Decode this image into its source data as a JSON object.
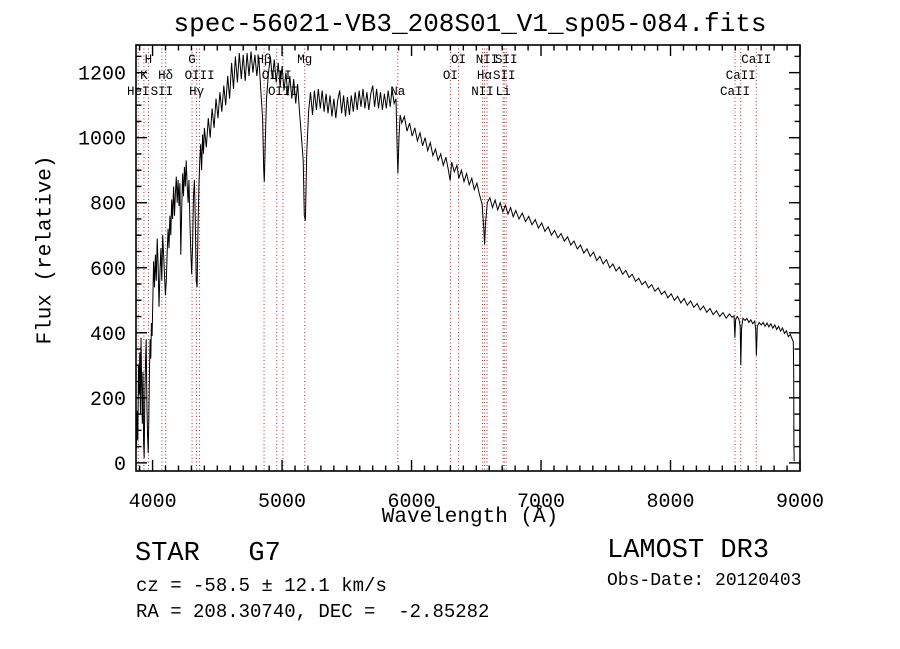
{
  "annotations": {
    "star_class": "STAR   G7",
    "survey": "LAMOST DR3",
    "cz": "cz = -58.5 ± 12.1 km/s",
    "radec": "RA = 208.30740, DEC =  -2.85282",
    "obs_date": "Obs-Date: 20120403"
  },
  "chart_data": {
    "type": "line",
    "title": "spec-56021-VB3_208S01_V1_sp05-084.fits",
    "xlabel": "Wavelength (Å)",
    "ylabel": "Flux (relative)",
    "x_range": [
      3872,
      9000
    ],
    "y_range": [
      -25,
      1285
    ],
    "x_ticks": [
      4000,
      5000,
      6000,
      7000,
      8000,
      9000
    ],
    "y_ticks": [
      0,
      200,
      400,
      600,
      800,
      1000,
      1200
    ],
    "x_minor_step": 100,
    "y_minor_step": 50,
    "grid": false,
    "line_color": "#000000",
    "marker_line_color": "#9e3434",
    "spectral_lines": [
      {
        "label": "H",
        "wavelength": 3968,
        "row": 1
      },
      {
        "label": "G",
        "wavelength": 4305,
        "row": 1
      },
      {
        "label": "Hβ",
        "wavelength": 4861,
        "row": 1
      },
      {
        "label": "Mg",
        "wavelength": 5175,
        "row": 1
      },
      {
        "label": "OI",
        "wavelength": 6363,
        "row": 1
      },
      {
        "label": "NII",
        "wavelength": 6583,
        "row": 1
      },
      {
        "label": "SII",
        "wavelength": 6731,
        "row": 1
      },
      {
        "label": "CaII",
        "wavelength": 8662,
        "row": 1
      },
      {
        "label": "K",
        "wavelength": 3933,
        "row": 2
      },
      {
        "label": "Hδ",
        "wavelength": 4101,
        "row": 2
      },
      {
        "label": "OIII",
        "wavelength": 4363,
        "row": 2
      },
      {
        "label": "OIII",
        "wavelength": 4959,
        "row": 2
      },
      {
        "label": "OI",
        "wavelength": 6300,
        "row": 2
      },
      {
        "label": "Hα",
        "wavelength": 6563,
        "row": 2
      },
      {
        "label": "SII",
        "wavelength": 6716,
        "row": 2
      },
      {
        "label": "CaII",
        "wavelength": 8542,
        "row": 2
      },
      {
        "label": "HeI",
        "wavelength": 3889,
        "row": 3
      },
      {
        "label": "SII",
        "wavelength": 4072,
        "row": 3
      },
      {
        "label": "Hγ",
        "wavelength": 4340,
        "row": 3
      },
      {
        "label": "OIII",
        "wavelength": 5007,
        "row": 3
      },
      {
        "label": "Na",
        "wavelength": 5894,
        "row": 3
      },
      {
        "label": "NII",
        "wavelength": 6548,
        "row": 3
      },
      {
        "label": "Li",
        "wavelength": 6707,
        "row": 3
      },
      {
        "label": "CaII",
        "wavelength": 8498,
        "row": 3
      }
    ],
    "spectrum": [
      [
        3876,
        45
      ],
      [
        3881,
        160
      ],
      [
        3886,
        70
      ],
      [
        3891,
        300
      ],
      [
        3896,
        210
      ],
      [
        3901,
        340
      ],
      [
        3906,
        150
      ],
      [
        3911,
        385
      ],
      [
        3916,
        240
      ],
      [
        3921,
        120
      ],
      [
        3926,
        280
      ],
      [
        3931,
        60
      ],
      [
        3935,
        15
      ],
      [
        3940,
        200
      ],
      [
        3946,
        320
      ],
      [
        3951,
        380
      ],
      [
        3956,
        180
      ],
      [
        3961,
        90
      ],
      [
        3966,
        30
      ],
      [
        3971,
        130
      ],
      [
        3976,
        290
      ],
      [
        3981,
        380
      ],
      [
        3986,
        320
      ],
      [
        3991,
        430
      ],
      [
        3996,
        390
      ],
      [
        4001,
        480
      ],
      [
        4008,
        620
      ],
      [
        4015,
        540
      ],
      [
        4022,
        640
      ],
      [
        4029,
        560
      ],
      [
        4036,
        690
      ],
      [
        4043,
        610
      ],
      [
        4050,
        480
      ],
      [
        4057,
        590
      ],
      [
        4064,
        660
      ],
      [
        4071,
        560
      ],
      [
        4078,
        700
      ],
      [
        4085,
        640
      ],
      [
        4092,
        580
      ],
      [
        4099,
        515
      ],
      [
        4106,
        560
      ],
      [
        4113,
        650
      ],
      [
        4120,
        720
      ],
      [
        4127,
        660
      ],
      [
        4134,
        760
      ],
      [
        4141,
        700
      ],
      [
        4148,
        810
      ],
      [
        4155,
        750
      ],
      [
        4162,
        850
      ],
      [
        4169,
        760
      ],
      [
        4176,
        830
      ],
      [
        4183,
        880
      ],
      [
        4190,
        800
      ],
      [
        4197,
        870
      ],
      [
        4204,
        790
      ],
      [
        4211,
        860
      ],
      [
        4218,
        640
      ],
      [
        4225,
        780
      ],
      [
        4232,
        890
      ],
      [
        4239,
        820
      ],
      [
        4246,
        910
      ],
      [
        4253,
        850
      ],
      [
        4260,
        930
      ],
      [
        4267,
        860
      ],
      [
        4274,
        800
      ],
      [
        4281,
        870
      ],
      [
        4288,
        740
      ],
      [
        4295,
        650
      ],
      [
        4302,
        580
      ],
      [
        4309,
        670
      ],
      [
        4316,
        820
      ],
      [
        4323,
        870
      ],
      [
        4330,
        750
      ],
      [
        4337,
        560
      ],
      [
        4344,
        540
      ],
      [
        4351,
        720
      ],
      [
        4358,
        850
      ],
      [
        4365,
        930
      ],
      [
        4372,
        980
      ],
      [
        4379,
        900
      ],
      [
        4386,
        1010
      ],
      [
        4393,
        950
      ],
      [
        4400,
        1030
      ],
      [
        4415,
        970
      ],
      [
        4430,
        1060
      ],
      [
        4445,
        1000
      ],
      [
        4460,
        1090
      ],
      [
        4475,
        1030
      ],
      [
        4490,
        1120
      ],
      [
        4505,
        1060
      ],
      [
        4520,
        1140
      ],
      [
        4535,
        1080
      ],
      [
        4550,
        1160
      ],
      [
        4565,
        1100
      ],
      [
        4580,
        1190
      ],
      [
        4595,
        1120
      ],
      [
        4610,
        1230
      ],
      [
        4625,
        1150
      ],
      [
        4640,
        1250
      ],
      [
        4655,
        1170
      ],
      [
        4670,
        1260
      ],
      [
        4685,
        1180
      ],
      [
        4700,
        1255
      ],
      [
        4715,
        1175
      ],
      [
        4730,
        1260
      ],
      [
        4745,
        1190
      ],
      [
        4760,
        1265
      ],
      [
        4775,
        1200
      ],
      [
        4790,
        1255
      ],
      [
        4805,
        1190
      ],
      [
        4820,
        1250
      ],
      [
        4835,
        1150
      ],
      [
        4850,
        1060
      ],
      [
        4858,
        900
      ],
      [
        4863,
        865
      ],
      [
        4871,
        1000
      ],
      [
        4880,
        1120
      ],
      [
        4895,
        1200
      ],
      [
        4910,
        1250
      ],
      [
        4925,
        1180
      ],
      [
        4940,
        1240
      ],
      [
        4955,
        1170
      ],
      [
        4970,
        1230
      ],
      [
        4985,
        1155
      ],
      [
        5000,
        1220
      ],
      [
        5015,
        1145
      ],
      [
        5030,
        1200
      ],
      [
        5045,
        1130
      ],
      [
        5060,
        1190
      ],
      [
        5075,
        1120
      ],
      [
        5090,
        1180
      ],
      [
        5105,
        1105
      ],
      [
        5120,
        1165
      ],
      [
        5135,
        1080
      ],
      [
        5150,
        1000
      ],
      [
        5163,
        930
      ],
      [
        5172,
        760
      ],
      [
        5180,
        745
      ],
      [
        5190,
        950
      ],
      [
        5205,
        1080
      ],
      [
        5220,
        1140
      ],
      [
        5235,
        1070
      ],
      [
        5250,
        1145
      ],
      [
        5265,
        1085
      ],
      [
        5280,
        1150
      ],
      [
        5295,
        1090
      ],
      [
        5310,
        1145
      ],
      [
        5325,
        1080
      ],
      [
        5340,
        1135
      ],
      [
        5355,
        1075
      ],
      [
        5370,
        1130
      ],
      [
        5385,
        1065
      ],
      [
        5400,
        1120
      ],
      [
        5415,
        1060
      ],
      [
        5430,
        1115
      ],
      [
        5445,
        1145
      ],
      [
        5460,
        1075
      ],
      [
        5475,
        1130
      ],
      [
        5490,
        1065
      ],
      [
        5505,
        1125
      ],
      [
        5520,
        1070
      ],
      [
        5535,
        1130
      ],
      [
        5550,
        1080
      ],
      [
        5565,
        1140
      ],
      [
        5580,
        1085
      ],
      [
        5595,
        1145
      ],
      [
        5610,
        1095
      ],
      [
        5625,
        1150
      ],
      [
        5640,
        1090
      ],
      [
        5655,
        1140
      ],
      [
        5670,
        1085
      ],
      [
        5685,
        1135
      ],
      [
        5700,
        1160
      ],
      [
        5715,
        1095
      ],
      [
        5730,
        1150
      ],
      [
        5745,
        1090
      ],
      [
        5760,
        1140
      ],
      [
        5775,
        1085
      ],
      [
        5790,
        1135
      ],
      [
        5805,
        1090
      ],
      [
        5820,
        1145
      ],
      [
        5835,
        1095
      ],
      [
        5850,
        1150
      ],
      [
        5865,
        1105
      ],
      [
        5880,
        1120
      ],
      [
        5889,
        960
      ],
      [
        5895,
        890
      ],
      [
        5903,
        1000
      ],
      [
        5912,
        1070
      ],
      [
        5925,
        1045
      ],
      [
        5945,
        1065
      ],
      [
        5965,
        1020
      ],
      [
        5985,
        1045
      ],
      [
        6005,
        1005
      ],
      [
        6025,
        1030
      ],
      [
        6045,
        990
      ],
      [
        6065,
        1015
      ],
      [
        6085,
        975
      ],
      [
        6105,
        1000
      ],
      [
        6125,
        960
      ],
      [
        6145,
        985
      ],
      [
        6165,
        945
      ],
      [
        6185,
        965
      ],
      [
        6205,
        930
      ],
      [
        6225,
        950
      ],
      [
        6245,
        915
      ],
      [
        6265,
        940
      ],
      [
        6285,
        900
      ],
      [
        6298,
        868
      ],
      [
        6310,
        925
      ],
      [
        6330,
        895
      ],
      [
        6350,
        915
      ],
      [
        6365,
        875
      ],
      [
        6385,
        900
      ],
      [
        6405,
        865
      ],
      [
        6425,
        890
      ],
      [
        6445,
        855
      ],
      [
        6465,
        875
      ],
      [
        6485,
        840
      ],
      [
        6505,
        860
      ],
      [
        6525,
        825
      ],
      [
        6545,
        795
      ],
      [
        6558,
        720
      ],
      [
        6564,
        672
      ],
      [
        6572,
        740
      ],
      [
        6585,
        800
      ],
      [
        6605,
        815
      ],
      [
        6625,
        785
      ],
      [
        6645,
        808
      ],
      [
        6665,
        778
      ],
      [
        6685,
        800
      ],
      [
        6705,
        772
      ],
      [
        6725,
        792
      ],
      [
        6745,
        765
      ],
      [
        6765,
        785
      ],
      [
        6785,
        757
      ],
      [
        6805,
        776
      ],
      [
        6830,
        750
      ],
      [
        6855,
        768
      ],
      [
        6880,
        742
      ],
      [
        6905,
        758
      ],
      [
        6930,
        732
      ],
      [
        6955,
        748
      ],
      [
        6980,
        722
      ],
      [
        7005,
        738
      ],
      [
        7030,
        712
      ],
      [
        7055,
        726
      ],
      [
        7080,
        700
      ],
      [
        7105,
        715
      ],
      [
        7130,
        692
      ],
      [
        7155,
        705
      ],
      [
        7180,
        682
      ],
      [
        7205,
        695
      ],
      [
        7230,
        670
      ],
      [
        7255,
        682
      ],
      [
        7280,
        658
      ],
      [
        7305,
        670
      ],
      [
        7330,
        645
      ],
      [
        7355,
        658
      ],
      [
        7380,
        635
      ],
      [
        7405,
        648
      ],
      [
        7430,
        622
      ],
      [
        7455,
        635
      ],
      [
        7480,
        612
      ],
      [
        7505,
        625
      ],
      [
        7530,
        600
      ],
      [
        7555,
        612
      ],
      [
        7580,
        590
      ],
      [
        7605,
        602
      ],
      [
        7630,
        580
      ],
      [
        7655,
        592
      ],
      [
        7680,
        570
      ],
      [
        7705,
        580
      ],
      [
        7730,
        558
      ],
      [
        7755,
        568
      ],
      [
        7780,
        548
      ],
      [
        7805,
        558
      ],
      [
        7830,
        538
      ],
      [
        7855,
        548
      ],
      [
        7880,
        528
      ],
      [
        7905,
        538
      ],
      [
        7930,
        518
      ],
      [
        7955,
        528
      ],
      [
        7980,
        508
      ],
      [
        8005,
        520
      ],
      [
        8030,
        500
      ],
      [
        8055,
        512
      ],
      [
        8080,
        492
      ],
      [
        8105,
        505
      ],
      [
        8130,
        485
      ],
      [
        8155,
        498
      ],
      [
        8180,
        478
      ],
      [
        8205,
        490
      ],
      [
        8230,
        470
      ],
      [
        8255,
        482
      ],
      [
        8280,
        463
      ],
      [
        8305,
        475
      ],
      [
        8330,
        456
      ],
      [
        8355,
        468
      ],
      [
        8380,
        450
      ],
      [
        8405,
        462
      ],
      [
        8430,
        445
      ],
      [
        8455,
        458
      ],
      [
        8475,
        448
      ],
      [
        8490,
        452
      ],
      [
        8497,
        385
      ],
      [
        8503,
        440
      ],
      [
        8515,
        450
      ],
      [
        8528,
        442
      ],
      [
        8538,
        420
      ],
      [
        8543,
        300
      ],
      [
        8549,
        415
      ],
      [
        8560,
        445
      ],
      [
        8575,
        438
      ],
      [
        8590,
        444
      ],
      [
        8605,
        432
      ],
      [
        8620,
        440
      ],
      [
        8635,
        428
      ],
      [
        8650,
        436
      ],
      [
        8658,
        410
      ],
      [
        8663,
        330
      ],
      [
        8670,
        420
      ],
      [
        8685,
        432
      ],
      [
        8700,
        424
      ],
      [
        8715,
        432
      ],
      [
        8730,
        420
      ],
      [
        8745,
        430
      ],
      [
        8760,
        418
      ],
      [
        8775,
        428
      ],
      [
        8790,
        414
      ],
      [
        8805,
        424
      ],
      [
        8820,
        410
      ],
      [
        8835,
        420
      ],
      [
        8850,
        405
      ],
      [
        8865,
        415
      ],
      [
        8880,
        398
      ],
      [
        8895,
        406
      ],
      [
        8910,
        388
      ],
      [
        8925,
        395
      ],
      [
        8938,
        382
      ],
      [
        8948,
        372
      ],
      [
        8951,
        280
      ],
      [
        8953,
        60
      ],
      [
        8955,
        5
      ]
    ]
  }
}
